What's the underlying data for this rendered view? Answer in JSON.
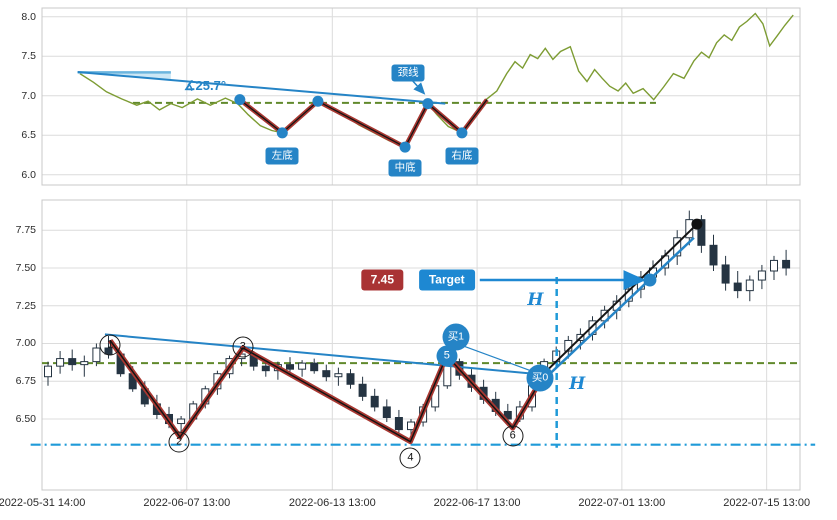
{
  "colors": {
    "green_line": "#7d9c33",
    "neckline_green": "#61892c",
    "blue": "#2584c6",
    "bright_blue": "#1f9ad8",
    "red": "#a83832",
    "black": "#141414",
    "candle": "#253442",
    "grid": "#dcdcdc",
    "panel_border": "#c8c8c8",
    "target_red_bg": "#a93334",
    "target_blue_bg": "#1e88d2"
  },
  "chart_data": {
    "type": "candlestick+line",
    "x_axis": {
      "labels": [
        "2022-05-31 14:00",
        "2022-06-07 13:00",
        "2022-06-13 13:00",
        "2022-06-17 13:00",
        "2022-07-01 13:00",
        "2022-07-15 13:00"
      ],
      "fracs": [
        0,
        0.191,
        0.383,
        0.574,
        0.765,
        0.956
      ]
    },
    "top_panel": {
      "type": "line",
      "ylim": [
        5.87,
        8.11
      ],
      "ytick_labels": [
        "8.0",
        "7.5",
        "7.0",
        "6.5",
        "6.0"
      ],
      "ytick_values": [
        8.0,
        7.5,
        7.0,
        6.5,
        6.0
      ],
      "line_series": [
        [
          0.05,
          7.28
        ],
        [
          0.068,
          7.17
        ],
        [
          0.085,
          7.05
        ],
        [
          0.105,
          6.96
        ],
        [
          0.125,
          6.88
        ],
        [
          0.14,
          6.93
        ],
        [
          0.155,
          6.82
        ],
        [
          0.17,
          6.9
        ],
        [
          0.185,
          6.85
        ],
        [
          0.205,
          6.96
        ],
        [
          0.222,
          6.88
        ],
        [
          0.242,
          6.97
        ],
        [
          0.258,
          6.9
        ],
        [
          0.272,
          6.76
        ],
        [
          0.288,
          6.62
        ],
        [
          0.303,
          6.56
        ],
        [
          0.317,
          6.53
        ],
        [
          0.332,
          6.66
        ],
        [
          0.348,
          6.81
        ],
        [
          0.364,
          6.93
        ],
        [
          0.38,
          6.86
        ],
        [
          0.398,
          6.76
        ],
        [
          0.418,
          6.63
        ],
        [
          0.438,
          6.53
        ],
        [
          0.458,
          6.43
        ],
        [
          0.479,
          6.35
        ],
        [
          0.494,
          6.6
        ],
        [
          0.509,
          6.9
        ],
        [
          0.521,
          6.76
        ],
        [
          0.536,
          6.61
        ],
        [
          0.554,
          6.53
        ],
        [
          0.57,
          6.76
        ],
        [
          0.587,
          6.96
        ],
        [
          0.6,
          7.06
        ],
        [
          0.613,
          7.28
        ],
        [
          0.624,
          7.43
        ],
        [
          0.634,
          7.35
        ],
        [
          0.644,
          7.52
        ],
        [
          0.654,
          7.47
        ],
        [
          0.664,
          7.6
        ],
        [
          0.674,
          7.46
        ],
        [
          0.684,
          7.56
        ],
        [
          0.697,
          7.62
        ],
        [
          0.708,
          7.31
        ],
        [
          0.719,
          7.18
        ],
        [
          0.729,
          7.33
        ],
        [
          0.739,
          7.22
        ],
        [
          0.749,
          7.12
        ],
        [
          0.76,
          7.06
        ],
        [
          0.77,
          7.16
        ],
        [
          0.78,
          7.03
        ],
        [
          0.793,
          7.09
        ],
        [
          0.807,
          6.95
        ],
        [
          0.82,
          7.11
        ],
        [
          0.833,
          7.28
        ],
        [
          0.847,
          7.22
        ],
        [
          0.86,
          7.44
        ],
        [
          0.87,
          7.55
        ],
        [
          0.88,
          7.48
        ],
        [
          0.89,
          7.67
        ],
        [
          0.9,
          7.77
        ],
        [
          0.91,
          7.7
        ],
        [
          0.92,
          7.87
        ],
        [
          0.93,
          7.94
        ],
        [
          0.941,
          8.04
        ],
        [
          0.951,
          7.91
        ],
        [
          0.96,
          7.63
        ],
        [
          0.97,
          7.76
        ],
        [
          0.98,
          7.89
        ],
        [
          0.991,
          8.02
        ]
      ],
      "zigzag": [
        [
          0.261,
          6.95
        ],
        [
          0.317,
          6.53
        ],
        [
          0.364,
          6.93
        ],
        [
          0.479,
          6.35
        ],
        [
          0.509,
          6.9
        ],
        [
          0.554,
          6.53
        ],
        [
          0.587,
          6.95
        ]
      ],
      "dot_count": 6,
      "neckline": {
        "p": 6.91,
        "x1": 0.12,
        "x2": 0.81
      },
      "trendline": {
        "x1": 0.047,
        "p1": 7.3,
        "x2": 0.532,
        "p2": 6.9
      },
      "angle_baseline": {
        "x1": 0.047,
        "p1": 7.295,
        "x2": 0.17,
        "p2": 7.295
      },
      "angle_wedge": [
        [
          0.047,
          7.3
        ],
        [
          0.17,
          7.3
        ],
        [
          0.17,
          7.2
        ]
      ],
      "annotations": {
        "angle": {
          "label": "∡25.7°",
          "xf": 0.215,
          "p": 7.12
        },
        "left_bottom": {
          "label": "左底",
          "xf": 0.317,
          "p": 6.24
        },
        "mid_bottom": {
          "label": "中底",
          "xf": 0.479,
          "p": 6.08
        },
        "right_bottom": {
          "label": "右底",
          "xf": 0.554,
          "p": 6.24
        },
        "neckline_label": {
          "label": "颈线",
          "xf": 0.483,
          "p": 7.29
        },
        "neckline_arrow": {
          "x1": 0.486,
          "p1": 7.22,
          "x2": 0.503,
          "p2": 7.04
        }
      }
    },
    "bottom_panel": {
      "type": "candlestick",
      "ylim": [
        6.03,
        7.95
      ],
      "ytick_labels": [
        "7.75",
        "7.50",
        "7.25",
        "7.00",
        "6.75",
        "6.50"
      ],
      "ytick_values": [
        7.75,
        7.5,
        7.25,
        7.0,
        6.75,
        6.5
      ],
      "candles": [
        [
          6.78,
          6.88,
          6.72,
          6.85
        ],
        [
          6.85,
          6.95,
          6.8,
          6.9
        ],
        [
          6.9,
          6.96,
          6.82,
          6.86
        ],
        [
          6.86,
          6.92,
          6.78,
          6.88
        ],
        [
          6.88,
          7.0,
          6.85,
          6.97
        ],
        [
          6.97,
          7.05,
          6.9,
          6.93
        ],
        [
          6.93,
          6.95,
          6.78,
          6.8
        ],
        [
          6.8,
          6.85,
          6.68,
          6.7
        ],
        [
          6.7,
          6.75,
          6.58,
          6.6
        ],
        [
          6.6,
          6.66,
          6.5,
          6.53
        ],
        [
          6.53,
          6.58,
          6.44,
          6.47
        ],
        [
          6.47,
          6.52,
          6.38,
          6.5
        ],
        [
          6.5,
          6.62,
          6.48,
          6.6
        ],
        [
          6.6,
          6.72,
          6.57,
          6.7
        ],
        [
          6.7,
          6.82,
          6.66,
          6.8
        ],
        [
          6.8,
          6.92,
          6.77,
          6.9
        ],
        [
          6.9,
          6.97,
          6.85,
          6.93
        ],
        [
          6.93,
          6.95,
          6.82,
          6.85
        ],
        [
          6.85,
          6.9,
          6.78,
          6.82
        ],
        [
          6.82,
          6.88,
          6.76,
          6.86
        ],
        [
          6.86,
          6.91,
          6.8,
          6.83
        ],
        [
          6.83,
          6.89,
          6.78,
          6.87
        ],
        [
          6.87,
          6.9,
          6.8,
          6.82
        ],
        [
          6.82,
          6.86,
          6.75,
          6.78
        ],
        [
          6.78,
          6.84,
          6.72,
          6.8
        ],
        [
          6.8,
          6.83,
          6.7,
          6.73
        ],
        [
          6.73,
          6.78,
          6.62,
          6.65
        ],
        [
          6.65,
          6.7,
          6.55,
          6.58
        ],
        [
          6.58,
          6.63,
          6.48,
          6.51
        ],
        [
          6.51,
          6.56,
          6.4,
          6.43
        ],
        [
          6.43,
          6.5,
          6.35,
          6.48
        ],
        [
          6.48,
          6.6,
          6.45,
          6.58
        ],
        [
          6.58,
          6.75,
          6.55,
          6.72
        ],
        [
          6.72,
          6.92,
          6.7,
          6.88
        ],
        [
          6.88,
          6.9,
          6.76,
          6.79
        ],
        [
          6.79,
          6.83,
          6.68,
          6.71
        ],
        [
          6.71,
          6.76,
          6.6,
          6.63
        ],
        [
          6.63,
          6.68,
          6.52,
          6.55
        ],
        [
          6.55,
          6.6,
          6.46,
          6.5
        ],
        [
          6.5,
          6.62,
          6.48,
          6.58
        ],
        [
          6.58,
          6.75,
          6.55,
          6.72
        ],
        [
          6.72,
          6.9,
          6.7,
          6.88
        ],
        [
          6.88,
          6.98,
          6.84,
          6.95
        ],
        [
          6.95,
          7.05,
          6.9,
          7.02
        ],
        [
          7.02,
          7.1,
          6.96,
          7.06
        ],
        [
          7.06,
          7.18,
          7.02,
          7.15
        ],
        [
          7.15,
          7.25,
          7.1,
          7.22
        ],
        [
          7.22,
          7.32,
          7.16,
          7.28
        ],
        [
          7.28,
          7.4,
          7.24,
          7.36
        ],
        [
          7.36,
          7.48,
          7.3,
          7.44
        ],
        [
          7.44,
          7.55,
          7.4,
          7.5
        ],
        [
          7.5,
          7.62,
          7.45,
          7.58
        ],
        [
          7.58,
          7.75,
          7.52,
          7.7
        ],
        [
          7.7,
          7.88,
          7.65,
          7.82
        ],
        [
          7.82,
          7.85,
          7.6,
          7.65
        ],
        [
          7.65,
          7.72,
          7.48,
          7.52
        ],
        [
          7.52,
          7.58,
          7.35,
          7.4
        ],
        [
          7.4,
          7.48,
          7.3,
          7.35
        ],
        [
          7.35,
          7.45,
          7.28,
          7.42
        ],
        [
          7.42,
          7.52,
          7.36,
          7.48
        ],
        [
          7.48,
          7.58,
          7.42,
          7.55
        ],
        [
          7.55,
          7.62,
          7.45,
          7.5
        ]
      ],
      "zigzag": [
        [
          0.09,
          7.02
        ],
        [
          0.182,
          6.38
        ],
        [
          0.265,
          6.97
        ],
        [
          0.486,
          6.35
        ],
        [
          0.534,
          6.92
        ],
        [
          0.621,
          6.44
        ],
        [
          0.668,
          6.84
        ]
      ],
      "trendline": {
        "x1": 0.083,
        "p1": 7.06,
        "x2": 0.67,
        "p2": 6.79
      },
      "support_dashdot": {
        "p": 6.33,
        "x1": -0.015,
        "x2": 1.02
      },
      "neckline_dashed": {
        "p": 6.87,
        "x1": 0.0,
        "x2": 1.0
      },
      "vline_dashed": {
        "xf": 0.679,
        "p1": 7.44,
        "p2": 6.31
      },
      "rise_black": {
        "x1": 0.668,
        "p1": 6.83,
        "x2": 0.864,
        "p2": 7.79
      },
      "rise_blue": {
        "x1": 0.668,
        "p1": 6.79,
        "x2": 0.86,
        "p2": 7.7
      },
      "buy_connector": {
        "x1": 0.558,
        "p1": 6.98,
        "x2": 0.65,
        "p2": 6.81
      },
      "target_dot": {
        "xf": 0.802,
        "p": 7.42
      },
      "end_dot": {
        "xf": 0.864,
        "p": 7.79
      },
      "pivot_circles": [
        {
          "label": "1",
          "xf": 0.09,
          "p": 6.99,
          "style": "outline"
        },
        {
          "label": "2",
          "xf": 0.181,
          "p": 6.35,
          "style": "outline"
        },
        {
          "label": "3",
          "xf": 0.265,
          "p": 6.98,
          "style": "outline"
        },
        {
          "label": "4",
          "xf": 0.486,
          "p": 6.24,
          "style": "outline"
        },
        {
          "label": "5",
          "xf": 0.534,
          "p": 6.92,
          "style": "filled"
        },
        {
          "label": "6",
          "xf": 0.621,
          "p": 6.39,
          "style": "outline"
        }
      ],
      "buy_markers": [
        {
          "label": "买1",
          "xf": 0.546,
          "p": 7.04
        },
        {
          "label": "买0",
          "xf": 0.657,
          "p": 6.77
        }
      ],
      "h_labels": [
        {
          "label": "H",
          "xf": 0.651,
          "p": 7.29
        },
        {
          "label": "H",
          "xf": 0.706,
          "p": 6.73
        }
      ],
      "target": {
        "price_label": "7.45",
        "target_label": "Target",
        "price_xf": 0.449,
        "target_xf": 0.534,
        "p": 7.42,
        "arrow_x2": 0.79
      }
    }
  }
}
